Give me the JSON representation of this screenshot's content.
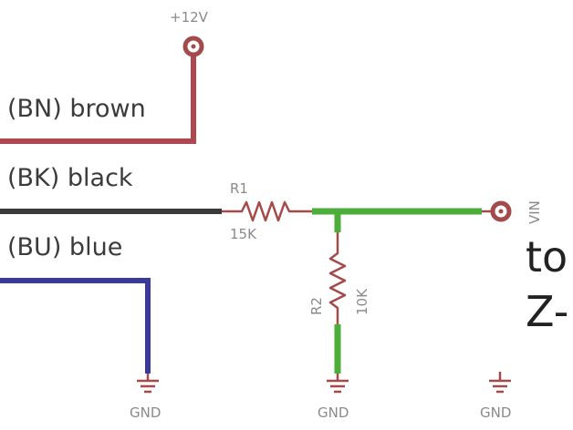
{
  "wires": {
    "brown": {
      "label": "(BN) brown",
      "color": "#b0464e"
    },
    "black": {
      "label": "(BK) black",
      "color": "#3a3a3a"
    },
    "blue": {
      "label": "(BU) blue",
      "color": "#3a3a9c"
    },
    "net": {
      "color": "#4cae3a"
    }
  },
  "power": {
    "label": "+12V"
  },
  "resistors": {
    "r1": {
      "name": "R1",
      "value": "15K"
    },
    "r2": {
      "name": "R2",
      "value": "10K"
    }
  },
  "components_color": "#a44a4a",
  "pin": {
    "label": "VIN"
  },
  "ground": {
    "label_1": "GND",
    "label_2": "GND",
    "label_3": "GND"
  },
  "side_text": {
    "line1": "to",
    "line2": "Z-"
  }
}
